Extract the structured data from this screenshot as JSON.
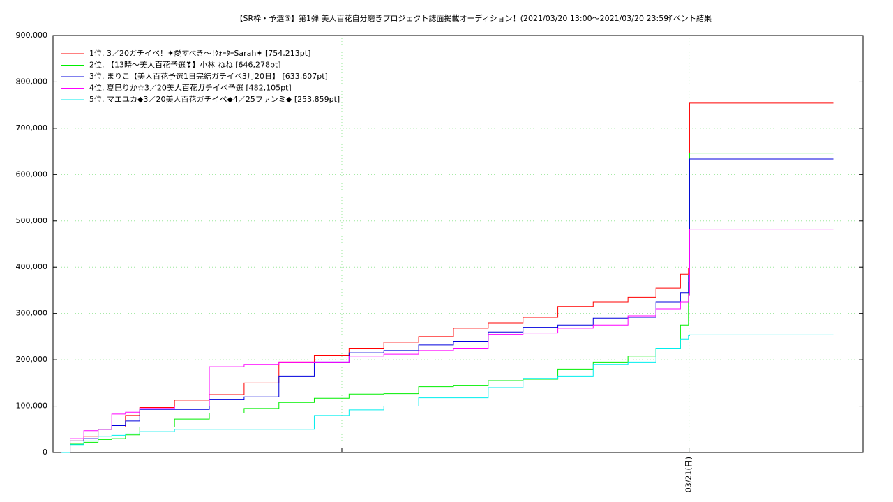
{
  "chart_data": {
    "type": "line",
    "step": true,
    "title": "【SR枠・予選⑤】第1弾 美人百花自分磨きプロジェクト誌面掲載オーディション！(2021/03/20 13:00～2021/03/20 23:59)",
    "subtitle": "イベント結果",
    "x": [
      13.0,
      13.15,
      13.39,
      13.64,
      13.88,
      14.12,
      14.37,
      14.98,
      15.59,
      16.2,
      16.81,
      17.43,
      18.04,
      18.65,
      19.26,
      19.87,
      20.48,
      21.09,
      21.7,
      22.32,
      22.93,
      23.42,
      23.85,
      23.99,
      24.01,
      26.53
    ],
    "xlim": [
      12.85,
      27.05
    ],
    "xticks": [
      {
        "value": 24,
        "label": "03/21(日)"
      }
    ],
    "ylim": [
      0,
      900000
    ],
    "yticks": [
      0,
      {
        "value": 100000,
        "label": "100,000"
      },
      {
        "value": 200000,
        "label": "200,000"
      },
      {
        "value": 300000,
        "label": "300,000"
      },
      {
        "value": 400000,
        "label": "400,000"
      },
      {
        "value": 500000,
        "label": "500,000"
      },
      {
        "value": 600000,
        "label": "600,000"
      },
      {
        "value": 700000,
        "label": "700,000"
      },
      {
        "value": 800000,
        "label": "800,000"
      },
      {
        "value": 900000,
        "label": "900,000"
      }
    ],
    "grid": true,
    "legend": "upper left",
    "series": [
      {
        "name": "1位. 3／20ガチイベ！✦愛すべき〜!ｸｫｰﾀｰSarah✦ [754,213pt]",
        "color": "#ff0000",
        "values": [
          0,
          25000,
          35000,
          50000,
          55000,
          80000,
          97000,
          113000,
          125000,
          150000,
          195000,
          210000,
          225000,
          238000,
          250000,
          268000,
          280000,
          292000,
          315000,
          325000,
          335000,
          355000,
          385000,
          397000,
          754213,
          754213
        ]
      },
      {
        "name": "2位. 【13時〜美人百花予選❣】小林 ねね [646,278pt]",
        "color": "#00ee00",
        "values": [
          0,
          18000,
          22000,
          28000,
          30000,
          38000,
          55000,
          72000,
          85000,
          95000,
          108000,
          117000,
          126000,
          127000,
          142000,
          145000,
          155000,
          158000,
          180000,
          195000,
          208000,
          225000,
          275000,
          368000,
          646278,
          646278
        ]
      },
      {
        "name": "3位. まりこ【美人百花予選1日完結ガチイベ3月20日】 [633,607pt]",
        "color": "#0000dd",
        "values": [
          0,
          25000,
          30000,
          50000,
          58000,
          68000,
          93000,
          93000,
          115000,
          120000,
          165000,
          195000,
          215000,
          220000,
          232000,
          240000,
          260000,
          270000,
          275000,
          290000,
          292000,
          325000,
          345000,
          382000,
          633607,
          633607
        ]
      },
      {
        "name": "4位. 夏巳りか☆3／20美人百花ガチイベ予選 [482,105pt]",
        "color": "#ff00ff",
        "values": [
          0,
          30000,
          47000,
          50000,
          83000,
          87000,
          95000,
          100000,
          185000,
          190000,
          195000,
          195000,
          208000,
          212000,
          220000,
          225000,
          255000,
          258000,
          268000,
          275000,
          295000,
          310000,
          325000,
          340000,
          482105,
          482105
        ]
      },
      {
        "name": "5位. マエユカ◆3／20美人百花ガチイベ◆4／25ファンミ◆ [253,859pt]",
        "color": "#00eeee",
        "values": [
          0,
          17000,
          25000,
          35000,
          37000,
          40000,
          45000,
          50000,
          50000,
          50000,
          50000,
          80000,
          92000,
          100000,
          118000,
          118000,
          140000,
          160000,
          165000,
          190000,
          195000,
          225000,
          245000,
          252000,
          253859,
          253859
        ]
      }
    ]
  }
}
